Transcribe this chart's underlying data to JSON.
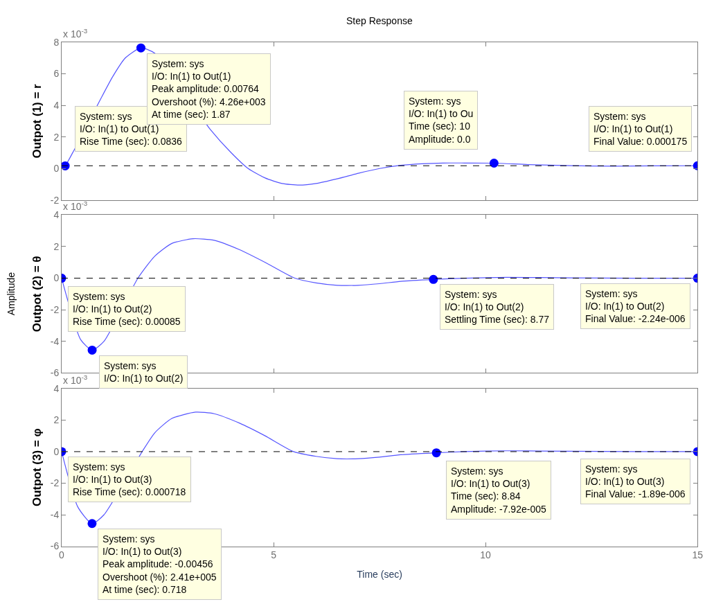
{
  "chart_data": [
    {
      "type": "line",
      "title": "Step Response",
      "ylabel": "Outpot (1) = r",
      "xlim": [
        0,
        15
      ],
      "xticks": [
        0,
        5,
        10,
        15
      ],
      "ylim": [
        -2,
        8
      ],
      "yticks": [
        -2,
        0,
        2,
        4,
        6,
        8
      ],
      "tick_labels": "y",
      "series": [
        {
          "type": "line",
          "color": "#5555ff",
          "x": [
            0,
            0.0836,
            0.3,
            0.9,
            1.2,
            1.5,
            1.87,
            2.2,
            3.5,
            4.0,
            4.4,
            4.8,
            5.2,
            5.6,
            6.0,
            6.5,
            7.0,
            7.5,
            8.0,
            8.5,
            9.0,
            9.5,
            10.2,
            11,
            12,
            13,
            14,
            15
          ],
          "values": [
            0,
            0.17,
            1.2,
            4.3,
            5.8,
            7.0,
            7.64,
            7.3,
            2.5,
            1.0,
            0.0,
            -0.6,
            -0.95,
            -1.05,
            -0.95,
            -0.65,
            -0.3,
            0.0,
            0.2,
            0.3,
            0.35,
            0.35,
            0.34,
            0.25,
            0.18,
            0.15,
            0.17,
            0.175
          ]
        },
        {
          "type": "scatter",
          "color": "#0000ff",
          "marker": "circle",
          "x": [
            0.0836,
            1.87,
            10.2,
            15
          ],
          "values": [
            0.17,
            7.64,
            0.34,
            0.175
          ]
        }
      ],
      "ref_lines": [
        {
          "axis": "y",
          "value": 0.175,
          "color": "#000000",
          "line_style": "dashed"
        }
      ],
      "annotations": [
        "x 10$^{-3}$",
        {
          "text": "System: sys\nI/O: In(1) to Out(1)\nRise Time (sec): 0.0836",
          "x": 0.0836,
          "y": 0.17
        },
        {
          "text": "System: sys\nI/O: In(1) to Out(1)\nPeak amplitude: 0.00764\nOvershoot (%): 4.26e+003\nAt time (sec): 1.87",
          "x": 1.87,
          "y": 7.64
        },
        {
          "text": "System: sys\nI/O: In(1) to Ou\nTime (sec): 10\nAmplitude: 0.0",
          "x": 10.2,
          "y": 0.34
        },
        {
          "text": "System: sys\nI/O: In(1) to Out(1)\nFinal Value: 0.000175",
          "x": 15,
          "y": 0.175
        }
      ]
    },
    {
      "type": "line",
      "ylabel": "Outpot (2) = θ",
      "xlim": [
        0,
        15
      ],
      "xticks": [
        0,
        5,
        10,
        15
      ],
      "ylim": [
        -6,
        4
      ],
      "yticks": [
        -6,
        -4,
        -2,
        0,
        2,
        4
      ],
      "tick_labels": "y",
      "series": [
        {
          "type": "line",
          "color": "#5555ff",
          "x": [
            0,
            0.45,
            0.72,
            1.0,
            1.8,
            2.2,
            2.6,
            3.1,
            3.6,
            4.2,
            4.8,
            5.5,
            6.0,
            6.5,
            7.0,
            7.5,
            8.0,
            8.77,
            9.5,
            10.5,
            12,
            13.5,
            15
          ],
          "values": [
            0,
            -3.9,
            -4.56,
            -4.0,
            0,
            1.4,
            2.2,
            2.5,
            2.4,
            1.8,
            1.0,
            0.0,
            -0.3,
            -0.45,
            -0.45,
            -0.35,
            -0.2,
            -0.08,
            0.0,
            0.05,
            0.02,
            0.0,
            -0.00224
          ]
        },
        {
          "type": "scatter",
          "color": "#0000ff",
          "marker": "circle",
          "x": [
            0,
            0.72,
            8.77,
            15
          ],
          "values": [
            0,
            -4.56,
            -0.08,
            -0.00224
          ]
        }
      ],
      "ref_lines": [
        {
          "axis": "y",
          "value": -0.00224,
          "color": "#000000",
          "line_style": "dashed"
        }
      ],
      "annotations": [
        "x 10$^{-3}$",
        "Amplitude",
        {
          "text": "System: sys\nI/O: In(1) to Out(2)\nRise Time (sec): 0.00085",
          "x": 0,
          "y": 0
        },
        {
          "text": "System: sys\nI/O: In(1) to Out(2)",
          "x": 0.72,
          "y": -4.56
        },
        {
          "text": "System: sys\nI/O: In(1) to Out(2)\nSettling Time (sec): 8.77",
          "x": 8.77,
          "y": -0.08
        },
        {
          "text": "System: sys\nI/O: In(1) to Out(2)\nFinal Value: -2.24e-006",
          "x": 15,
          "y": -0.00224
        }
      ]
    },
    {
      "type": "line",
      "ylabel": "Outpot (3) = φ",
      "xlabel": "Time (sec)",
      "xlim": [
        0,
        15
      ],
      "xticks": [
        0,
        5,
        10,
        15
      ],
      "ylim": [
        -6,
        4
      ],
      "yticks": [
        -6,
        -4,
        -2,
        0,
        2,
        4
      ],
      "series": [
        {
          "type": "line",
          "color": "#5555ff",
          "x": [
            0,
            0.38,
            0.718,
            1.0,
            1.9,
            2.2,
            2.6,
            3.16,
            3.6,
            4.2,
            4.8,
            5.47,
            6.0,
            6.5,
            7.0,
            7.5,
            8.0,
            8.84,
            9.5,
            10.5,
            12,
            13.5,
            15
          ],
          "values": [
            0,
            -3.5,
            -4.56,
            -4.0,
            0,
            1.2,
            2.1,
            2.5,
            2.4,
            1.8,
            1.0,
            0.0,
            -0.3,
            -0.45,
            -0.45,
            -0.35,
            -0.2,
            -0.0792,
            0.0,
            0.05,
            0.02,
            0.0,
            -0.00189
          ]
        },
        {
          "type": "scatter",
          "color": "#0000ff",
          "marker": "circle",
          "x": [
            0,
            0.718,
            8.84,
            15
          ],
          "values": [
            0,
            -4.56,
            -0.0792,
            -0.00189
          ]
        }
      ],
      "ref_lines": [
        {
          "axis": "y",
          "value": -0.00189,
          "color": "#000000",
          "line_style": "dashed"
        }
      ],
      "annotations": [
        "x 10$^{-3}$",
        {
          "text": "System: sys\nI/O: In(1) to Out(3)\nRise Time (sec): 0.000718",
          "x": 0,
          "y": 0
        },
        {
          "text": "System: sys\nI/O: In(1) to Out(3)\nPeak amplitude: -0.00456\nOvershoot (%): 2.41e+005\nAt time (sec): 0.718",
          "x": 0.718,
          "y": -4.56
        },
        {
          "text": "System: sys\nI/O: In(1) to Out(3)\nTime (sec): 8.84\nAmplitude: -7.92e-005",
          "x": 8.84,
          "y": -0.0792
        },
        {
          "text": "System: sys\nI/O: In(1) to Out(3)\nFinal Value: -1.89e-006",
          "x": 15,
          "y": -0.00189
        }
      ]
    }
  ]
}
